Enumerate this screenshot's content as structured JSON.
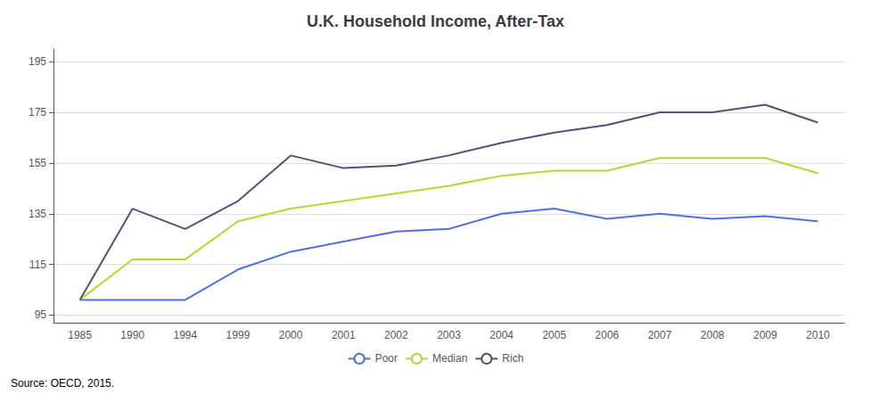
{
  "chart_data": {
    "type": "line",
    "title": "U.K. Household Income, After-Tax",
    "categories": [
      "1985",
      "1990",
      "1994",
      "1999",
      "2000",
      "2001",
      "2002",
      "2003",
      "2004",
      "2005",
      "2006",
      "2007",
      "2008",
      "2009",
      "2010"
    ],
    "series": [
      {
        "name": "Poor",
        "values": [
          101,
          101,
          101,
          113,
          120,
          124,
          128,
          129,
          135,
          137,
          133,
          135,
          133,
          134,
          132
        ]
      },
      {
        "name": "Median",
        "values": [
          101,
          117,
          117,
          132,
          137,
          140,
          143,
          146,
          150,
          152,
          152,
          157,
          157,
          157,
          151
        ]
      },
      {
        "name": "Rich",
        "values": [
          101,
          137,
          129,
          140,
          158,
          153,
          154,
          158,
          163,
          167,
          170,
          175,
          175,
          178,
          171
        ]
      }
    ],
    "ylim": [
      92,
      200
    ],
    "yticks": [
      95,
      115,
      135,
      155,
      175,
      195
    ],
    "grid": true,
    "legend": "bottom",
    "annotations": [
      "Source: OECD, 2015."
    ]
  }
}
